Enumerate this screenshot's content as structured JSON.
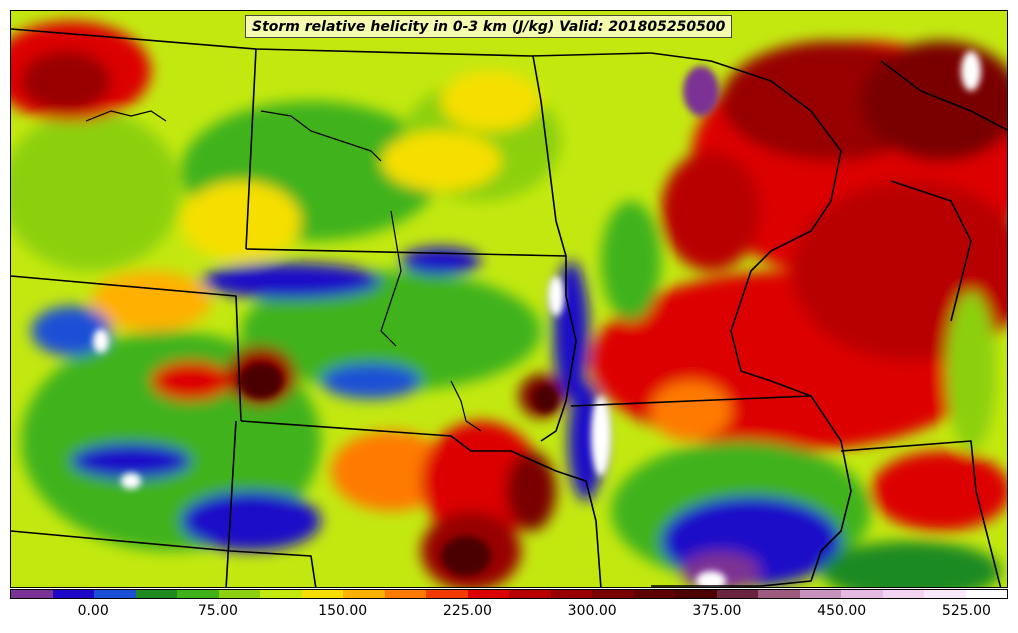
{
  "title": "Storm relative helicity in 0-3 km (J/kg) Valid: 201805250500",
  "legend": {
    "colors": [
      "#7b3294",
      "#1d08c8",
      "#1a4fd6",
      "#1f8a22",
      "#3fb21a",
      "#8cd010",
      "#c3e810",
      "#f6df00",
      "#ffb000",
      "#ff7a00",
      "#f33a00",
      "#dd0000",
      "#b90000",
      "#980000",
      "#7a0000",
      "#5f0000",
      "#4c0000",
      "#6b2440",
      "#9c5a80",
      "#c792be",
      "#e6b8e4",
      "#f2d4f0",
      "#fae8fa",
      "#ffffff"
    ],
    "tick_labels": [
      "0.00",
      "75.00",
      "150.00",
      "225.00",
      "300.00",
      "375.00",
      "450.00",
      "525.00"
    ]
  },
  "map": {
    "field": "Storm relative helicity in 0-3 km",
    "units": "J/kg",
    "valid": "201805250500",
    "boundaries": "US state borders and Great Lakes coastlines"
  }
}
